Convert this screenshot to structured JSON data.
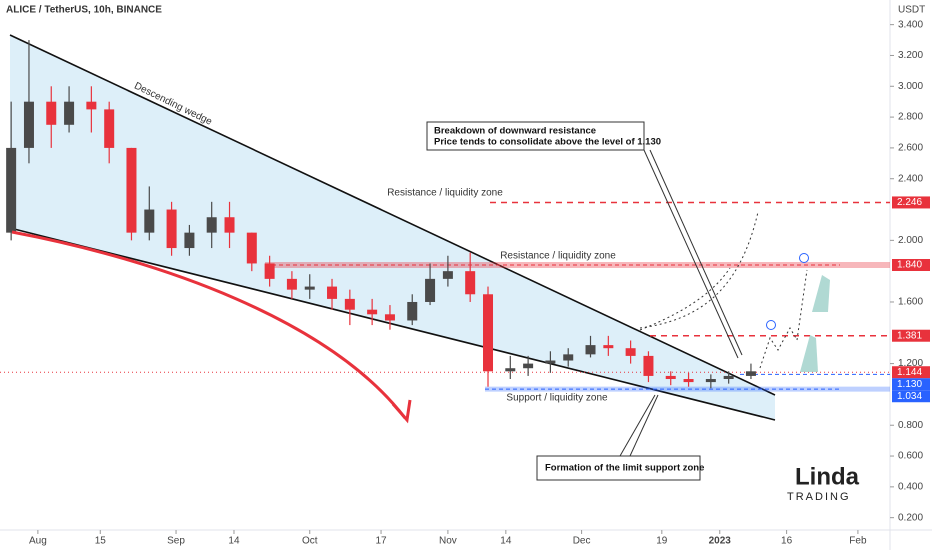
{
  "header": {
    "symbol": "ALICE / TetherUS, 10h, BINANCE",
    "currency": "USDT"
  },
  "chart_data": {
    "type": "candlestick",
    "x": [
      -6,
      -2,
      3,
      7,
      12,
      16,
      21,
      25,
      30,
      34,
      39,
      43,
      48,
      52,
      57,
      61,
      66,
      70,
      75,
      79,
      84,
      88,
      92,
      97,
      101,
      106,
      110,
      115,
      119,
      124,
      128,
      133,
      137,
      142,
      146,
      151,
      155,
      160
    ],
    "open": [
      2.05,
      2.6,
      2.9,
      2.75,
      2.9,
      2.85,
      2.6,
      2.05,
      2.2,
      1.95,
      2.05,
      2.15,
      2.05,
      1.85,
      1.75,
      1.68,
      1.7,
      1.62,
      1.55,
      1.52,
      1.48,
      1.6,
      1.75,
      1.8,
      1.65,
      1.15,
      1.17,
      1.2,
      1.22,
      1.26,
      1.32,
      1.3,
      1.25,
      1.12,
      1.1,
      1.08,
      1.1,
      1.12
    ],
    "high": [
      2.9,
      3.3,
      3.0,
      3.0,
      3.0,
      2.9,
      2.6,
      2.35,
      2.25,
      2.1,
      2.25,
      2.25,
      2.05,
      1.9,
      1.8,
      1.78,
      1.75,
      1.68,
      1.62,
      1.58,
      1.65,
      1.85,
      1.9,
      1.92,
      1.7,
      1.25,
      1.25,
      1.28,
      1.3,
      1.38,
      1.38,
      1.35,
      1.28,
      1.15,
      1.14,
      1.13,
      1.15,
      1.2
    ],
    "low": [
      2.0,
      2.5,
      2.6,
      2.7,
      2.7,
      2.5,
      2.0,
      2.0,
      1.9,
      1.9,
      1.95,
      1.95,
      1.8,
      1.7,
      1.62,
      1.62,
      1.55,
      1.45,
      1.45,
      1.42,
      1.45,
      1.58,
      1.7,
      1.6,
      1.05,
      1.1,
      1.12,
      1.14,
      1.18,
      1.24,
      1.25,
      1.2,
      1.08,
      1.06,
      1.05,
      1.04,
      1.07,
      1.1
    ],
    "close": [
      2.6,
      2.9,
      2.75,
      2.9,
      2.85,
      2.6,
      2.05,
      2.2,
      1.95,
      2.05,
      2.15,
      2.05,
      1.85,
      1.75,
      1.68,
      1.7,
      1.62,
      1.55,
      1.52,
      1.48,
      1.6,
      1.75,
      1.8,
      1.65,
      1.15,
      1.17,
      1.2,
      1.22,
      1.26,
      1.32,
      1.3,
      1.25,
      1.12,
      1.1,
      1.08,
      1.1,
      1.12,
      1.15
    ],
    "up_color": "#4a4a4a",
    "down_color": "#e8323c",
    "xlim": [
      -8.5,
      191.2
    ],
    "ylim": [
      0.12,
      3.56
    ],
    "xticks": [
      {
        "value": 0,
        "label": "Aug"
      },
      {
        "value": 14,
        "label": "15"
      },
      {
        "value": 31,
        "label": "Sep"
      },
      {
        "value": 44,
        "label": "14"
      },
      {
        "value": 61,
        "label": "Oct"
      },
      {
        "value": 77,
        "label": "17"
      },
      {
        "value": 92,
        "label": "Nov"
      },
      {
        "value": 105,
        "label": "14"
      },
      {
        "value": 122,
        "label": "Dec"
      },
      {
        "value": 140,
        "label": "19"
      },
      {
        "value": 153,
        "label": "2023"
      },
      {
        "value": 168,
        "label": "16"
      },
      {
        "value": 184,
        "label": "Feb"
      }
    ],
    "yticks": [
      {
        "value": 3.4,
        "label": "3.400"
      },
      {
        "value": 3.2,
        "label": "3.200"
      },
      {
        "value": 3,
        "label": "3.000"
      },
      {
        "value": 2.8,
        "label": "2.800"
      },
      {
        "value": 2.6,
        "label": "2.600"
      },
      {
        "value": 2.4,
        "label": "2.400"
      },
      {
        "value": 2,
        "label": "2.000"
      },
      {
        "value": 1.6,
        "label": "1.600"
      },
      {
        "value": 1.2,
        "label": "1.200"
      },
      {
        "value": 0.8,
        "label": "0.800"
      },
      {
        "value": 0.6,
        "label": "0.600"
      },
      {
        "value": 0.4,
        "label": "0.400"
      },
      {
        "value": 0.2,
        "label": "0.200"
      }
    ],
    "levels": [
      {
        "value": 2.246,
        "label": "2.246",
        "color": "#e8323c"
      },
      {
        "value": 1.84,
        "label": "1.840",
        "color": "#e8323c"
      },
      {
        "value": 1.381,
        "label": "1.381",
        "color": "#e8323c"
      },
      {
        "value": 1.144,
        "label": "1.144",
        "color": "#e8323c"
      },
      {
        "value": 1.13,
        "label": "1.130",
        "color": "#2962ff"
      },
      {
        "value": 1.034,
        "label": "1.034",
        "color": "#2962ff"
      }
    ],
    "wedge_label": "Descending wedge",
    "resistance_labels": [
      "Resistance / liquidity zone",
      "Resistance / liquidity zone"
    ],
    "support_label": "Support / liquidity zone",
    "callout_breakdown": [
      "Breakdown of downward resistance",
      "Price tends to consolidate above the level of 1.130"
    ],
    "callout_support": "Formation of the limit support zone"
  },
  "logo": {
    "name": "Linda",
    "tagline": "TRADING"
  }
}
